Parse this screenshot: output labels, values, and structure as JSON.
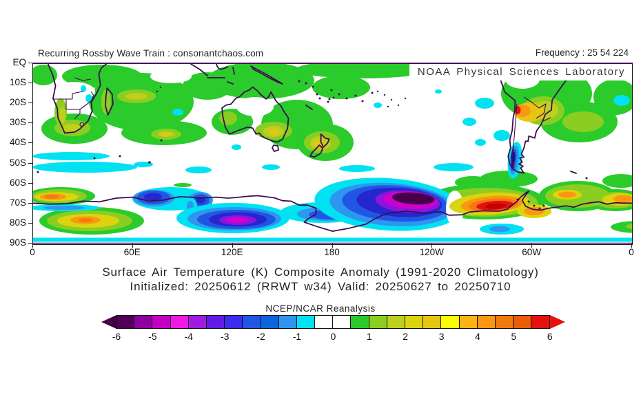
{
  "page": {
    "watermark": "Recurring Rossby Wave Train : consonantchaos.com",
    "frequency_label": "Frequency : 25 54 224",
    "agency_label": "NOAA Physical Sciences Laboratory"
  },
  "titles": {
    "line1": "Surface Air Temperature (K) Composite Anomaly (1991-2020 Climatology)",
    "line2": "Initialized: 20250612 (RRWT w34) Valid: 20250627 to 20250710"
  },
  "axes": {
    "x_ticks": [
      "0",
      "60E",
      "120E",
      "180",
      "120W",
      "60W",
      "0"
    ],
    "y_ticks": [
      "EQ",
      "10S",
      "20S",
      "30S",
      "40S",
      "50S",
      "60S",
      "70S",
      "80S",
      "90S"
    ]
  },
  "colorbar": {
    "title": "NCEP/NCAR Reanalysis",
    "tick_labels": [
      "-6",
      "-5",
      "-4",
      "-3",
      "-2",
      "-1",
      "0",
      "1",
      "2",
      "3",
      "4",
      "5",
      "6"
    ],
    "left_arrow_color": "#440044",
    "right_arrow_color": "#e61010",
    "cell_colors": [
      "#520057",
      "#8f00a3",
      "#c400c4",
      "#ef18e4",
      "#a11ae0",
      "#611ae8",
      "#3a2cf0",
      "#2156e4",
      "#0b66dc",
      "#2e96ee",
      "#00e2f2",
      "#ffffff",
      "#ffffff",
      "#2acb2a",
      "#8ccd21",
      "#becf1e",
      "#dcd40e",
      "#e8c512",
      "#fcfc02",
      "#fbb414",
      "#fb9712",
      "#f17a10",
      "#ea5c08",
      "#e61010"
    ]
  },
  "chart_data": {
    "type": "heatmap",
    "title": "Surface Air Temperature (K) Composite Anomaly (1991-2020 Climatology)",
    "subtitle": "Initialized: 20250612 (RRWT w34) Valid: 20250627 to 20250710",
    "source": "NCEP/NCAR Reanalysis",
    "units": "K",
    "projection": "cylindrical equidistant, Southern Hemisphere",
    "x_axis": {
      "label": "longitude",
      "ticks": [
        "0",
        "60E",
        "120E",
        "180",
        "120W",
        "60W",
        "0"
      ],
      "range_deg_east": [
        0,
        360
      ]
    },
    "y_axis": {
      "label": "latitude",
      "ticks": [
        "EQ",
        "10S",
        "20S",
        "30S",
        "40S",
        "50S",
        "60S",
        "70S",
        "80S",
        "90S"
      ],
      "range": [
        "EQ",
        "90S"
      ]
    },
    "colorbar_range": [
      -6,
      6
    ],
    "contour_interval": 0.5,
    "grid": false,
    "legend_position": "bottom colorbar with out-of-range arrows",
    "features": [
      {
        "region": "Indian Ocean 40E-100E, 5S-40S",
        "anomaly_K": "+0.5 to +2"
      },
      {
        "region": "Southern Africa coast and Namibia 14E-30E, 22S-38S",
        "anomaly_K": "+1 to +2"
      },
      {
        "region": "SW Australia ~115E 28S and SE Australia / Tasman ~145E 35S",
        "anomaly_K": "+1.5 to +2.5"
      },
      {
        "region": "New Zealand ~172E 40S",
        "anomaly_K": "+1.5 to +2.5"
      },
      {
        "region": "Brazil / South Atlantic 290E-350E, 5S-40S",
        "anomaly_K": "+0.5 to +1.5"
      },
      {
        "region": "Northern Argentina / Andes ~70W-60W 22S-30S",
        "anomaly_K": "+2 to +4 with small +4 core"
      },
      {
        "region": "Subtropical SE Pacific 130W-90W, 15S-45S",
        "anomaly_K": "-0.5 to -1 patches"
      },
      {
        "region": "Circumpolar 45S-55S band 0E-60E",
        "anomaly_K": "-0.5 to -1"
      },
      {
        "region": "Patagonian Andes ~70W, 40S-55S",
        "anomaly_K": "-2 to -4 narrow streak"
      },
      {
        "region": "East Antarctica 60E-85E and 95E-108E, 62S-74S",
        "anomaly_K": "-2 to -3.5"
      },
      {
        "region": "East Antarctica 100E-145E, 72S-82S",
        "anomaly_K": "-4 to -5 with magenta core"
      },
      {
        "region": "Ross Sea / dateline 170E-150W, 58S-84S",
        "anomaly_K": "-5 to below -6 (dark core)"
      },
      {
        "region": "Coastal Antarctica 0E-35E, 65S-69S",
        "anomaly_K": "+2 to +4"
      },
      {
        "region": "Antarctic interior 0E-65E, 72S-85S",
        "anomaly_K": "+2 to +4"
      },
      {
        "region": "Amundsen-Bellingshausen Seas 110W-70W, 68S-76S",
        "anomaly_K": "+4 to above +6 (red core)"
      },
      {
        "region": "Antarctic Peninsula / Weddell 60W-25W, 60S-74S",
        "anomaly_K": "+1.5 to +4"
      },
      {
        "region": "85S-90S circumpolar strip",
        "anomaly_K": "-0.5 to -1"
      }
    ]
  }
}
